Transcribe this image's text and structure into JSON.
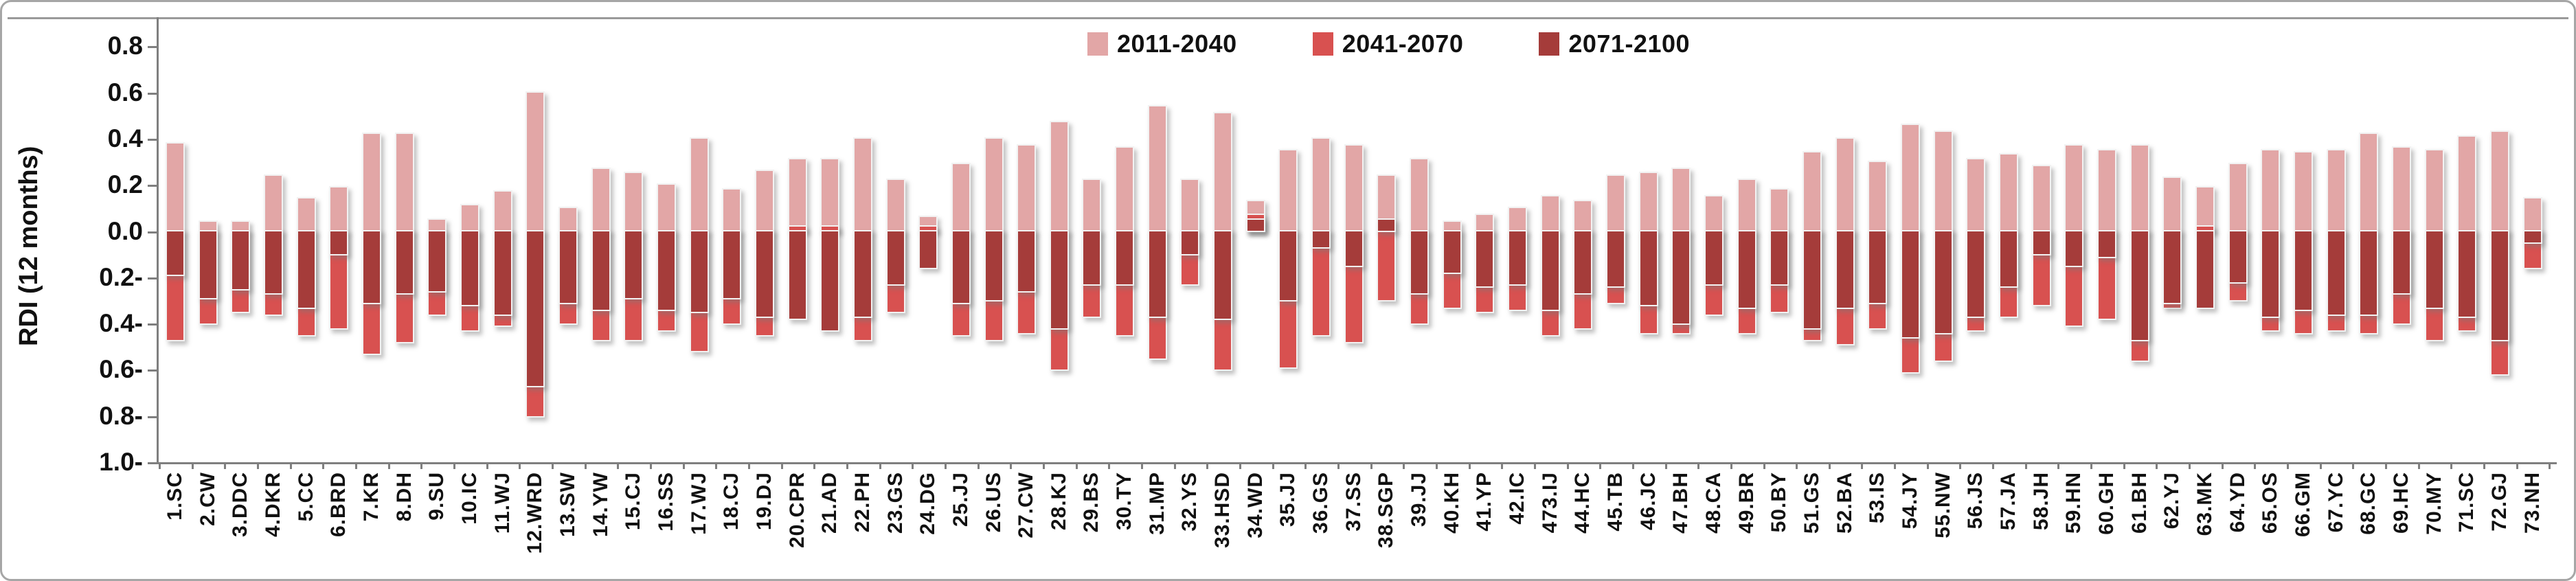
{
  "figure": {
    "background": "#ffffff",
    "frame_border_color": "#a6a6a6",
    "top_rule_color": "#9a9a9a",
    "axis_color": "#7f7f7f",
    "text_color": "#111111"
  },
  "chart_data": {
    "type": "bar",
    "subtype": "overlapped-vertical-columns",
    "title": "",
    "xlabel": "",
    "ylabel": "RDI (12 months)",
    "ylim": [
      -1.0,
      0.8
    ],
    "ytick_step": 0.2,
    "ytick_labels": [
      "0.8",
      "0.6",
      "0.4",
      "0.2",
      "0.0",
      "-0.2",
      "-0.4",
      "-0.6",
      "-0.8",
      "-1.0"
    ],
    "grid": false,
    "legend_position": "top-center",
    "categories": [
      "1.SC",
      "2.CW",
      "3.DDC",
      "4.DKR",
      "5.CC",
      "6.BRD",
      "7.KR",
      "8.DH",
      "9.SU",
      "10.IC",
      "11.WJ",
      "12.WRD",
      "13.SW",
      "14.YW",
      "15.CJ",
      "16.SS",
      "17.WJ",
      "18.CJ",
      "19.DJ",
      "20.CPR",
      "21.AD",
      "22.PH",
      "23.GS",
      "24.DG",
      "25.JJ",
      "26.US",
      "27.CW",
      "28.KJ",
      "29.BS",
      "30.TY",
      "31.MP",
      "32.YS",
      "33.HSD",
      "34.WD",
      "35.JJ",
      "36.GS",
      "37.SS",
      "38.SGP",
      "39.JJ",
      "40.KH",
      "41.YP",
      "42.IC",
      "473.IJ",
      "44.HC",
      "45.TB",
      "46.JC",
      "47.BH",
      "48.CA",
      "49.BR",
      "50.BY",
      "51.GS",
      "52.BA",
      "53.IS",
      "54.JY",
      "55.NW",
      "56.JS",
      "57.JA",
      "58.JH",
      "59.HN",
      "60.GH",
      "61.BH",
      "62.YJ",
      "63.MK",
      "64.YD",
      "65.OS",
      "66.GM",
      "67.YC",
      "68.GC",
      "69.HC",
      "70.MY",
      "71.SC",
      "72.GJ",
      "73.NH"
    ],
    "series": [
      {
        "name": "2011-2040",
        "color": "#e2a6a6",
        "values": [
          0.38,
          0.04,
          0.04,
          0.24,
          0.14,
          0.19,
          0.42,
          0.42,
          0.05,
          0.11,
          0.17,
          0.6,
          0.1,
          0.27,
          0.25,
          0.2,
          0.4,
          0.18,
          0.26,
          0.31,
          0.31,
          0.4,
          0.22,
          0.06,
          0.29,
          0.4,
          0.37,
          0.47,
          0.22,
          0.36,
          0.54,
          0.22,
          0.51,
          0.13,
          0.35,
          0.4,
          0.37,
          0.24,
          0.31,
          0.04,
          0.07,
          0.1,
          0.15,
          0.13,
          0.24,
          0.25,
          0.27,
          0.15,
          0.22,
          0.18,
          0.34,
          0.4,
          0.3,
          0.46,
          0.43,
          0.31,
          0.33,
          0.28,
          0.37,
          0.35,
          0.37,
          0.23,
          0.19,
          0.29,
          0.35,
          0.34,
          0.35,
          0.42,
          0.36,
          0.35,
          0.41,
          0.43,
          0.14
        ]
      },
      {
        "name": "2041-2070",
        "color": "#d85150",
        "values": [
          -0.47,
          -0.4,
          -0.35,
          -0.36,
          -0.45,
          -0.42,
          -0.53,
          -0.48,
          -0.36,
          -0.43,
          -0.41,
          -0.8,
          -0.4,
          -0.47,
          -0.47,
          -0.43,
          -0.52,
          -0.4,
          -0.45,
          0.02,
          0.02,
          -0.47,
          -0.35,
          0.02,
          -0.45,
          -0.47,
          -0.44,
          -0.6,
          -0.37,
          -0.45,
          -0.55,
          -0.23,
          -0.6,
          0.07,
          -0.59,
          -0.45,
          -0.48,
          -0.3,
          -0.4,
          -0.33,
          -0.35,
          -0.34,
          -0.45,
          -0.42,
          -0.31,
          -0.44,
          -0.44,
          -0.36,
          -0.44,
          -0.35,
          -0.47,
          -0.49,
          -0.42,
          -0.61,
          -0.56,
          -0.43,
          -0.37,
          -0.32,
          -0.41,
          -0.38,
          -0.56,
          -0.33,
          0.02,
          -0.3,
          -0.43,
          -0.44,
          -0.43,
          -0.44,
          -0.4,
          -0.47,
          -0.43,
          -0.62,
          -0.16
        ]
      },
      {
        "name": "2071-2100",
        "color": "#a53c3a",
        "values": [
          -0.19,
          -0.29,
          -0.25,
          -0.27,
          -0.33,
          -0.1,
          -0.31,
          -0.27,
          -0.26,
          -0.32,
          -0.36,
          -0.67,
          -0.31,
          -0.34,
          -0.29,
          -0.34,
          -0.35,
          -0.29,
          -0.37,
          -0.38,
          -0.43,
          -0.37,
          -0.23,
          -0.16,
          -0.31,
          -0.3,
          -0.26,
          -0.42,
          -0.23,
          -0.23,
          -0.37,
          -0.1,
          -0.38,
          0.05,
          -0.3,
          -0.07,
          -0.15,
          0.05,
          -0.27,
          -0.18,
          -0.24,
          -0.23,
          -0.34,
          -0.27,
          -0.24,
          -0.32,
          -0.4,
          -0.23,
          -0.33,
          -0.23,
          -0.42,
          -0.33,
          -0.31,
          -0.46,
          -0.44,
          -0.37,
          -0.24,
          -0.1,
          -0.15,
          -0.11,
          -0.47,
          -0.31,
          -0.33,
          -0.22,
          -0.37,
          -0.34,
          -0.36,
          -0.36,
          -0.27,
          -0.33,
          -0.37,
          -0.47,
          -0.05
        ]
      }
    ]
  }
}
